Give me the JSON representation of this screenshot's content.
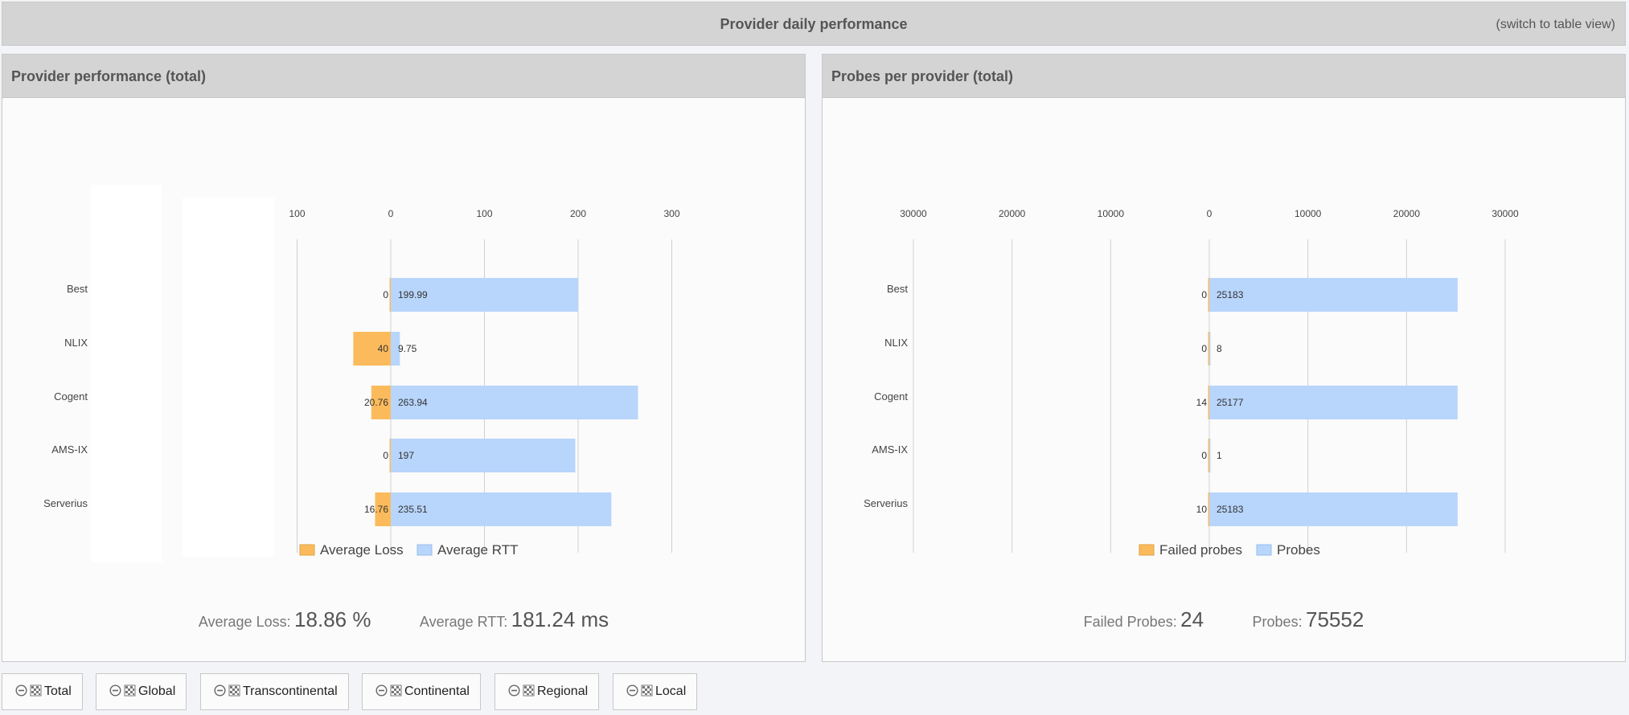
{
  "header": {
    "title": "Provider daily performance",
    "switch_label": "(switch to table view)"
  },
  "colors": {
    "loss": "#fbbb5c",
    "rtt": "#b8d5fc",
    "grid": "#d0d0d0"
  },
  "panels": [
    {
      "title": "Provider performance (total)",
      "stats": [
        {
          "label": "Average Loss:",
          "value": "18.86 %"
        },
        {
          "label": "Average RTT:",
          "value": "181.24 ms"
        }
      ]
    },
    {
      "title": "Probes per provider (total)",
      "stats": [
        {
          "label": "Failed Probes:",
          "value": "24"
        },
        {
          "label": "Probes:",
          "value": "75552"
        }
      ]
    }
  ],
  "chart_data": [
    {
      "type": "bar",
      "orientation": "horizontal-diverging",
      "title": "Provider performance (total)",
      "categories": [
        "Best",
        "NLIX",
        "Cogent",
        "AMS-IX",
        "Serverius"
      ],
      "series": [
        {
          "name": "Average Loss",
          "direction": "left",
          "values": [
            0,
            40,
            20.76,
            0,
            16.76
          ],
          "labels": [
            "0",
            "40",
            "20.76",
            "0",
            "16.76"
          ]
        },
        {
          "name": "Average RTT",
          "direction": "right",
          "values": [
            199.99,
            9.75,
            263.94,
            197,
            235.51
          ],
          "labels": [
            "199.99",
            "9.75",
            "263.94",
            "197",
            "235.51"
          ]
        }
      ],
      "xlim_left": [
        0,
        100
      ],
      "xlim_right": [
        0,
        300
      ],
      "ticks_left": [
        "100"
      ],
      "ticks_right": [
        "0",
        "100",
        "200",
        "300"
      ],
      "grid": true,
      "legend": "bottom"
    },
    {
      "type": "bar",
      "orientation": "horizontal-diverging",
      "title": "Probes per provider (total)",
      "categories": [
        "Best",
        "NLIX",
        "Cogent",
        "AMS-IX",
        "Serverius"
      ],
      "series": [
        {
          "name": "Failed probes",
          "direction": "left",
          "values": [
            0,
            0,
            14,
            0,
            10
          ],
          "labels": [
            "0",
            "0",
            "14",
            "0",
            "10"
          ]
        },
        {
          "name": "Probes",
          "direction": "right",
          "values": [
            25183,
            8,
            25177,
            1,
            25183
          ],
          "labels": [
            "25183",
            "8",
            "25177",
            "1",
            "25183"
          ]
        }
      ],
      "xlim_left": [
        0,
        30000
      ],
      "xlim_right": [
        0,
        30000
      ],
      "ticks_left": [
        "30000",
        "20000",
        "10000"
      ],
      "ticks_right": [
        "0",
        "10000",
        "20000",
        "30000"
      ],
      "grid": true,
      "legend": "bottom"
    }
  ],
  "tabs": [
    {
      "label": "Total"
    },
    {
      "label": "Global"
    },
    {
      "label": "Transcontinental"
    },
    {
      "label": "Continental"
    },
    {
      "label": "Regional"
    },
    {
      "label": "Local"
    }
  ]
}
